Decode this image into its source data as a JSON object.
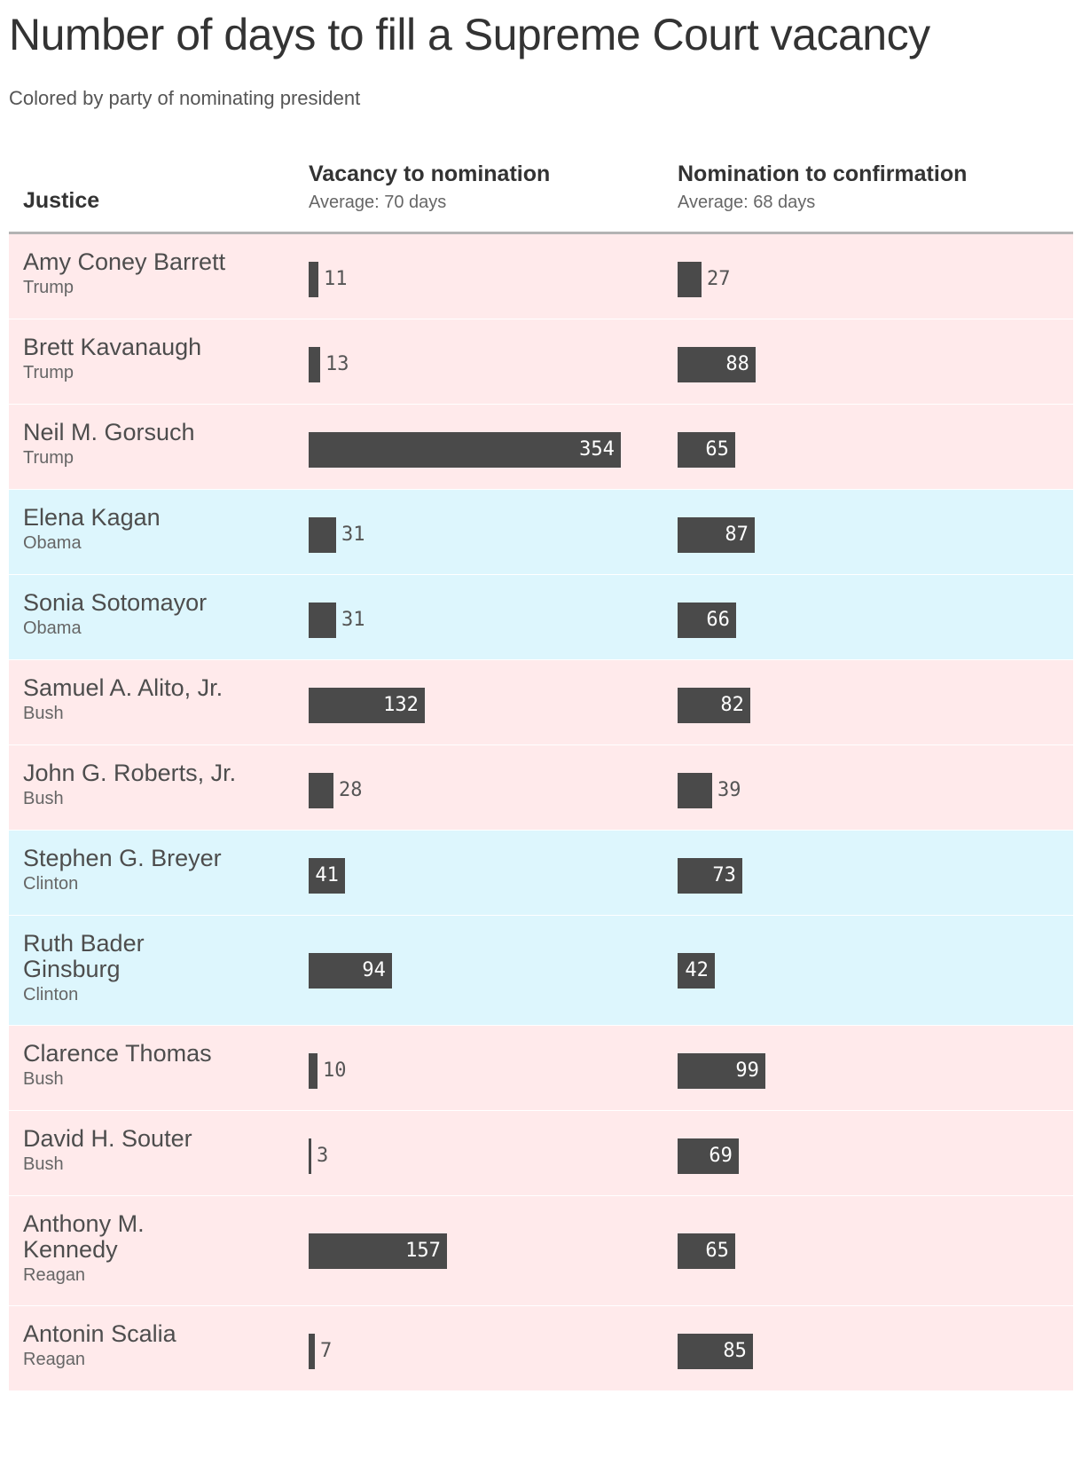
{
  "title": "Number of days to fill a Supreme Court vacancy",
  "subtitle": "Colored by party of nominating president",
  "colors": {
    "republican": "#ffeaeb",
    "democrat": "#ddf6fd",
    "bar": "#4a4a4a"
  },
  "header": {
    "justice": "Justice",
    "col1": {
      "label": "Vacancy to nomination",
      "average": "Average: 70 days"
    },
    "col2": {
      "label": "Nomination to confirmation",
      "average": "Average: 68 days"
    }
  },
  "chart_data": {
    "type": "table",
    "columns": [
      "Justice",
      "Vacancy to nomination",
      "Nomination to confirmation"
    ],
    "rows": [
      {
        "name_lines": [
          "Amy Coney Barrett"
        ],
        "president": "Trump",
        "party": "R",
        "vacancy_to_nomination": 11,
        "nomination_to_confirmation": 27
      },
      {
        "name_lines": [
          "Brett Kavanaugh"
        ],
        "president": "Trump",
        "party": "R",
        "vacancy_to_nomination": 13,
        "nomination_to_confirmation": 88
      },
      {
        "name_lines": [
          "Neil M. Gorsuch"
        ],
        "president": "Trump",
        "party": "R",
        "vacancy_to_nomination": 354,
        "nomination_to_confirmation": 65
      },
      {
        "name_lines": [
          "Elena Kagan"
        ],
        "president": "Obama",
        "party": "D",
        "vacancy_to_nomination": 31,
        "nomination_to_confirmation": 87
      },
      {
        "name_lines": [
          "Sonia Sotomayor"
        ],
        "president": "Obama",
        "party": "D",
        "vacancy_to_nomination": 31,
        "nomination_to_confirmation": 66
      },
      {
        "name_lines": [
          "Samuel A. Alito, Jr."
        ],
        "president": "Bush",
        "party": "R",
        "vacancy_to_nomination": 132,
        "nomination_to_confirmation": 82
      },
      {
        "name_lines": [
          "John G. Roberts, Jr."
        ],
        "president": "Bush",
        "party": "R",
        "vacancy_to_nomination": 28,
        "nomination_to_confirmation": 39
      },
      {
        "name_lines": [
          "Stephen G. Breyer"
        ],
        "president": "Clinton",
        "party": "D",
        "vacancy_to_nomination": 41,
        "nomination_to_confirmation": 73
      },
      {
        "name_lines": [
          "Ruth Bader",
          "Ginsburg"
        ],
        "president": "Clinton",
        "party": "D",
        "vacancy_to_nomination": 94,
        "nomination_to_confirmation": 42
      },
      {
        "name_lines": [
          "Clarence Thomas"
        ],
        "president": "Bush",
        "party": "R",
        "vacancy_to_nomination": 10,
        "nomination_to_confirmation": 99
      },
      {
        "name_lines": [
          "David H. Souter"
        ],
        "president": "Bush",
        "party": "R",
        "vacancy_to_nomination": 3,
        "nomination_to_confirmation": 69
      },
      {
        "name_lines": [
          "Anthony M.",
          "Kennedy"
        ],
        "president": "Reagan",
        "party": "R",
        "vacancy_to_nomination": 157,
        "nomination_to_confirmation": 65
      },
      {
        "name_lines": [
          "Antonin Scalia"
        ],
        "president": "Reagan",
        "party": "R",
        "vacancy_to_nomination": 7,
        "nomination_to_confirmation": 85
      }
    ]
  }
}
